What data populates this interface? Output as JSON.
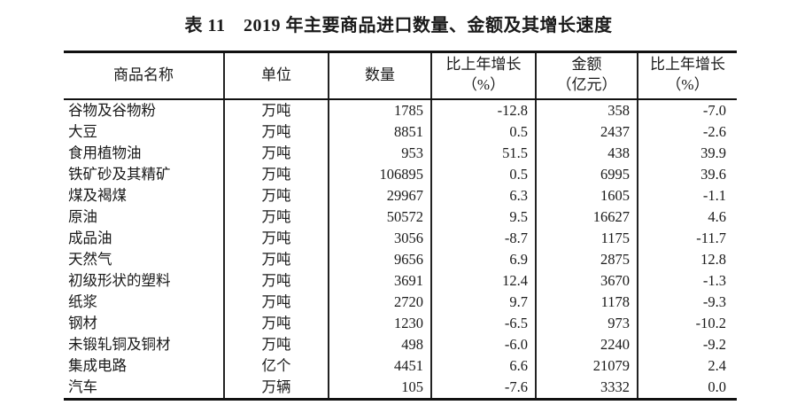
{
  "title": "表 11　2019 年主要商品进口数量、金额及其增长速度",
  "table": {
    "headers": [
      {
        "label": "商品名称",
        "sub": ""
      },
      {
        "label": "单位",
        "sub": ""
      },
      {
        "label": "数量",
        "sub": ""
      },
      {
        "label": "比上年增长",
        "sub": "（%）"
      },
      {
        "label": "金额",
        "sub": "（亿元）"
      },
      {
        "label": "比上年增长",
        "sub": "（%）"
      }
    ],
    "rows": [
      {
        "commodity": "谷物及谷物粉",
        "unit": "万吨",
        "quantity": "1785",
        "quantity_growth": "-12.8",
        "value": "358",
        "value_growth": "-7.0"
      },
      {
        "commodity": "大豆",
        "unit": "万吨",
        "quantity": "8851",
        "quantity_growth": "0.5",
        "value": "2437",
        "value_growth": "-2.6"
      },
      {
        "commodity": "食用植物油",
        "unit": "万吨",
        "quantity": "953",
        "quantity_growth": "51.5",
        "value": "438",
        "value_growth": "39.9"
      },
      {
        "commodity": "铁矿砂及其精矿",
        "unit": "万吨",
        "quantity": "106895",
        "quantity_growth": "0.5",
        "value": "6995",
        "value_growth": "39.6"
      },
      {
        "commodity": "煤及褐煤",
        "unit": "万吨",
        "quantity": "29967",
        "quantity_growth": "6.3",
        "value": "1605",
        "value_growth": "-1.1"
      },
      {
        "commodity": "原油",
        "unit": "万吨",
        "quantity": "50572",
        "quantity_growth": "9.5",
        "value": "16627",
        "value_growth": "4.6"
      },
      {
        "commodity": "成品油",
        "unit": "万吨",
        "quantity": "3056",
        "quantity_growth": "-8.7",
        "value": "1175",
        "value_growth": "-11.7"
      },
      {
        "commodity": "天然气",
        "unit": "万吨",
        "quantity": "9656",
        "quantity_growth": "6.9",
        "value": "2875",
        "value_growth": "12.8"
      },
      {
        "commodity": "初级形状的塑料",
        "unit": "万吨",
        "quantity": "3691",
        "quantity_growth": "12.4",
        "value": "3670",
        "value_growth": "-1.3"
      },
      {
        "commodity": "纸浆",
        "unit": "万吨",
        "quantity": "2720",
        "quantity_growth": "9.7",
        "value": "1178",
        "value_growth": "-9.3"
      },
      {
        "commodity": "钢材",
        "unit": "万吨",
        "quantity": "1230",
        "quantity_growth": "-6.5",
        "value": "973",
        "value_growth": "-10.2"
      },
      {
        "commodity": "未锻轧铜及铜材",
        "unit": "万吨",
        "quantity": "498",
        "quantity_growth": "-6.0",
        "value": "2240",
        "value_growth": "-9.2"
      },
      {
        "commodity": "集成电路",
        "unit": "亿个",
        "quantity": "4451",
        "quantity_growth": "6.6",
        "value": "21079",
        "value_growth": "2.4"
      },
      {
        "commodity": "汽车",
        "unit": "万辆",
        "quantity": "105",
        "quantity_growth": "-7.6",
        "value": "3332",
        "value_growth": "0.0"
      }
    ]
  }
}
